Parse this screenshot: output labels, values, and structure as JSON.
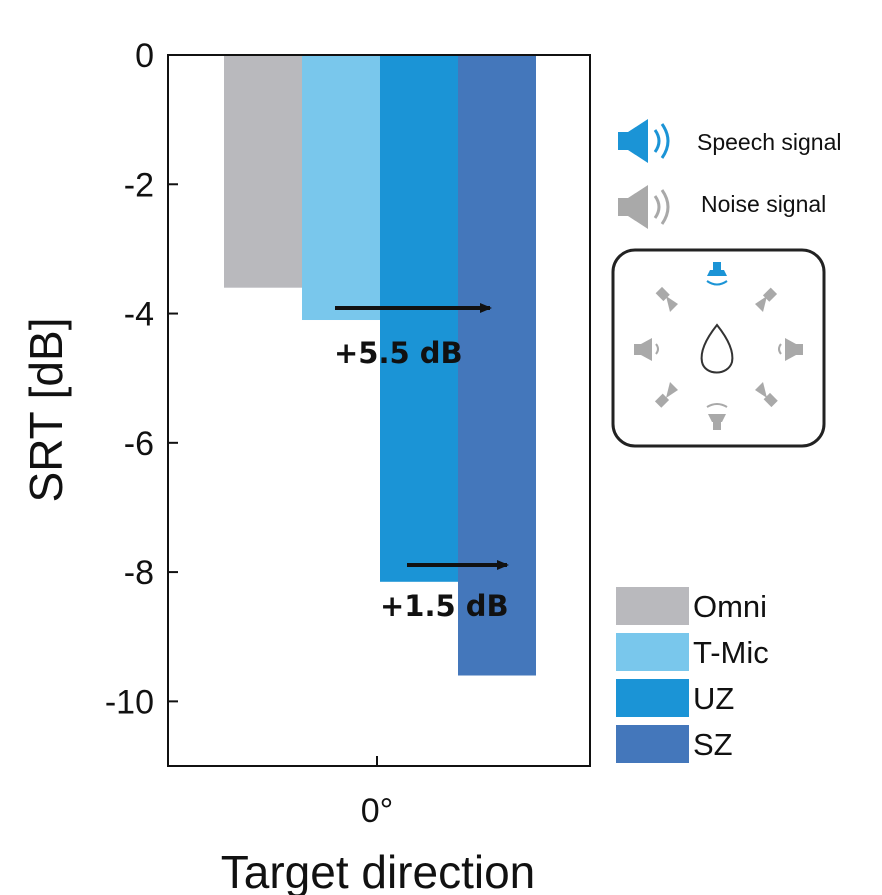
{
  "chart_data": {
    "type": "bar",
    "categories": [
      "0°"
    ],
    "series": [
      {
        "name": "Omni",
        "values": [
          -3.6
        ],
        "color": "#b9b9bd"
      },
      {
        "name": "T-Mic",
        "values": [
          -4.1
        ],
        "color": "#79c7ec"
      },
      {
        "name": "UZ",
        "values": [
          -8.15
        ],
        "color": "#1b94d6"
      },
      {
        "name": "SZ",
        "values": [
          -9.6
        ],
        "color": "#4477bb"
      }
    ],
    "ylabel": "SRT [dB]",
    "xlabel": "Target direction",
    "ylim": [
      -11,
      0
    ],
    "yticks": [
      "0",
      "-2",
      "-4",
      "-6",
      "-8",
      "-10"
    ],
    "grid": false,
    "legend_position": "right",
    "annotations": [
      {
        "text": "+5.5 dB",
        "from_series": "T-Mic",
        "to_series": "SZ",
        "y": -3.9
      },
      {
        "text": "+1.5 dB",
        "from_series": "UZ",
        "to_series": "SZ",
        "y": -7.9
      }
    ]
  },
  "inset": {
    "speech_label": "Speech signal",
    "noise_label": "Noise signal",
    "speech_color": "#1b94d6",
    "noise_color": "#a9a9a9",
    "icons": [
      "speaker-icon",
      "head-icon"
    ]
  }
}
